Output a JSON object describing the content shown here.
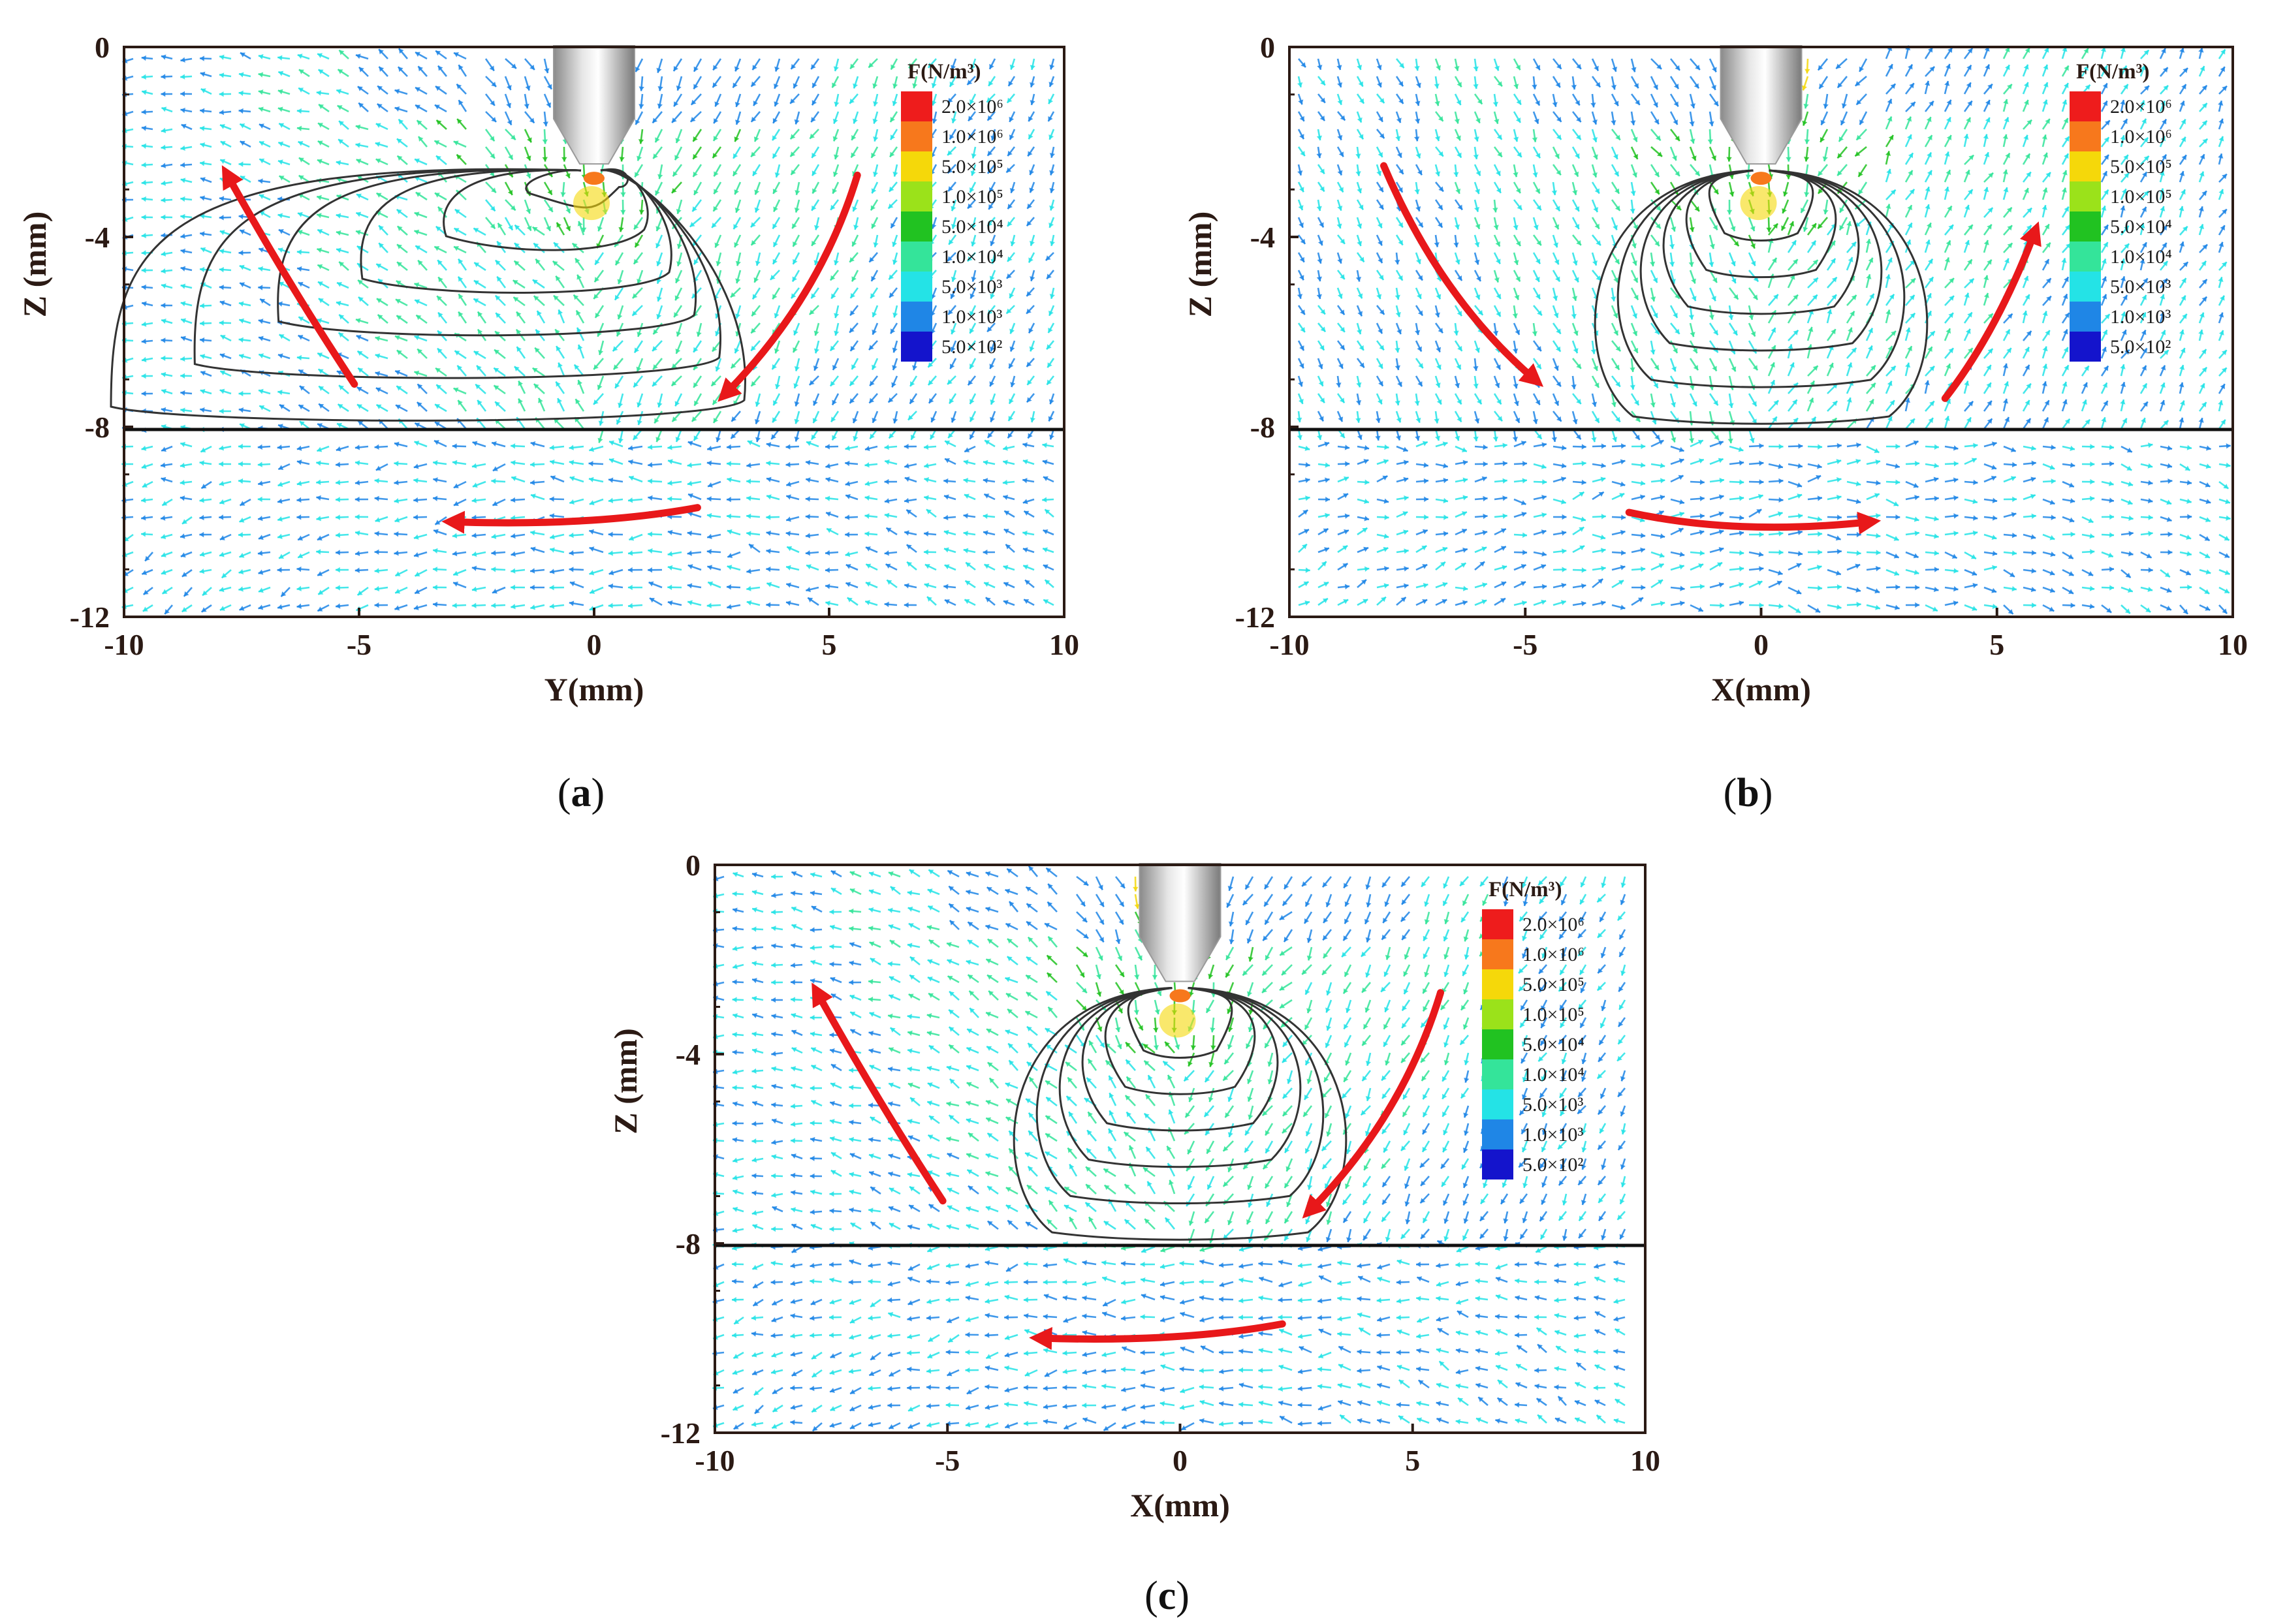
{
  "panels": [
    {
      "id": "a",
      "caption_letter": "a",
      "xlabel": "Y(mm)",
      "ylabel": "Z (mm)",
      "xticks": [
        "-10",
        "-5",
        "0",
        "5",
        "10"
      ],
      "yticks": [
        "0",
        "-4",
        "-8",
        "-12"
      ],
      "flow": "left-loop",
      "melt_pool": "wide"
    },
    {
      "id": "b",
      "caption_letter": "b",
      "xlabel": "X(mm)",
      "ylabel": "Z (mm)",
      "xticks": [
        "-10",
        "-5",
        "0",
        "5",
        "10"
      ],
      "yticks": [
        "0",
        "-4",
        "-8",
        "-12"
      ],
      "flow": "right-loop",
      "melt_pool": "deep"
    },
    {
      "id": "c",
      "caption_letter": "c",
      "xlabel": "X(mm)",
      "ylabel": "Z (mm)",
      "xticks": [
        "-10",
        "-5",
        "0",
        "5",
        "10"
      ],
      "yticks": [
        "0",
        "-4",
        "-8",
        "-12"
      ],
      "flow": "left-loop",
      "melt_pool": "deep"
    }
  ],
  "legend": {
    "title": "F(N/m³)",
    "levels": [
      {
        "label": "2.0×10⁶",
        "color": "#ee1c1c"
      },
      {
        "label": "1.0×10⁶",
        "color": "#f7781c"
      },
      {
        "label": "5.0×10⁵",
        "color": "#f5d80a"
      },
      {
        "label": "1.0×10⁵",
        "color": "#9be21a"
      },
      {
        "label": "5.0×10⁴",
        "color": "#21c221"
      },
      {
        "label": "1.0×10⁴",
        "color": "#34e49a"
      },
      {
        "label": "5.0×10³",
        "color": "#24e3e6"
      },
      {
        "label": "1.0×10³",
        "color": "#1f86e6"
      },
      {
        "label": "5.0×10²",
        "color": "#1414cc"
      }
    ]
  },
  "colors": {
    "flow_arrow": "#e8181a",
    "contour": "#333333",
    "axis": "#2b1a14"
  }
}
